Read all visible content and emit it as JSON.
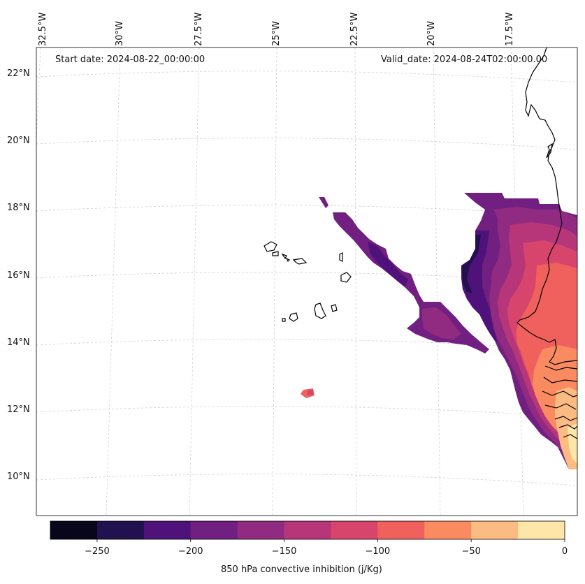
{
  "header": {
    "start_label": "Start date: 2024-08-22_00:00:00",
    "valid_label": "Valid_date: 2024-08-24T02:00:00.00"
  },
  "top_lon_labels": [
    "32.5°W",
    "30°W",
    "27.5°W",
    "25°W",
    "22.5°W",
    "20°W",
    "17.5°W"
  ],
  "left_lat_labels": [
    "22°N",
    "20°N",
    "18°N",
    "16°N",
    "14°N",
    "12°N",
    "10°N"
  ],
  "colorbar": {
    "title": "850 hPa convective inhibition (j/Kg)",
    "min": -275,
    "max": 0,
    "step": 25,
    "tick_values": [
      -250,
      -200,
      -150,
      -100,
      -50,
      0
    ],
    "tick_labels": [
      "−250",
      "−200",
      "−150",
      "−100",
      "−50",
      "0"
    ],
    "colors": [
      "#07061a",
      "#21114e",
      "#4f127b",
      "#711f81",
      "#912b81",
      "#b63679",
      "#d8456c",
      "#f0605d",
      "#fa8b60",
      "#fdbb84",
      "#fde6a8"
    ]
  }
}
